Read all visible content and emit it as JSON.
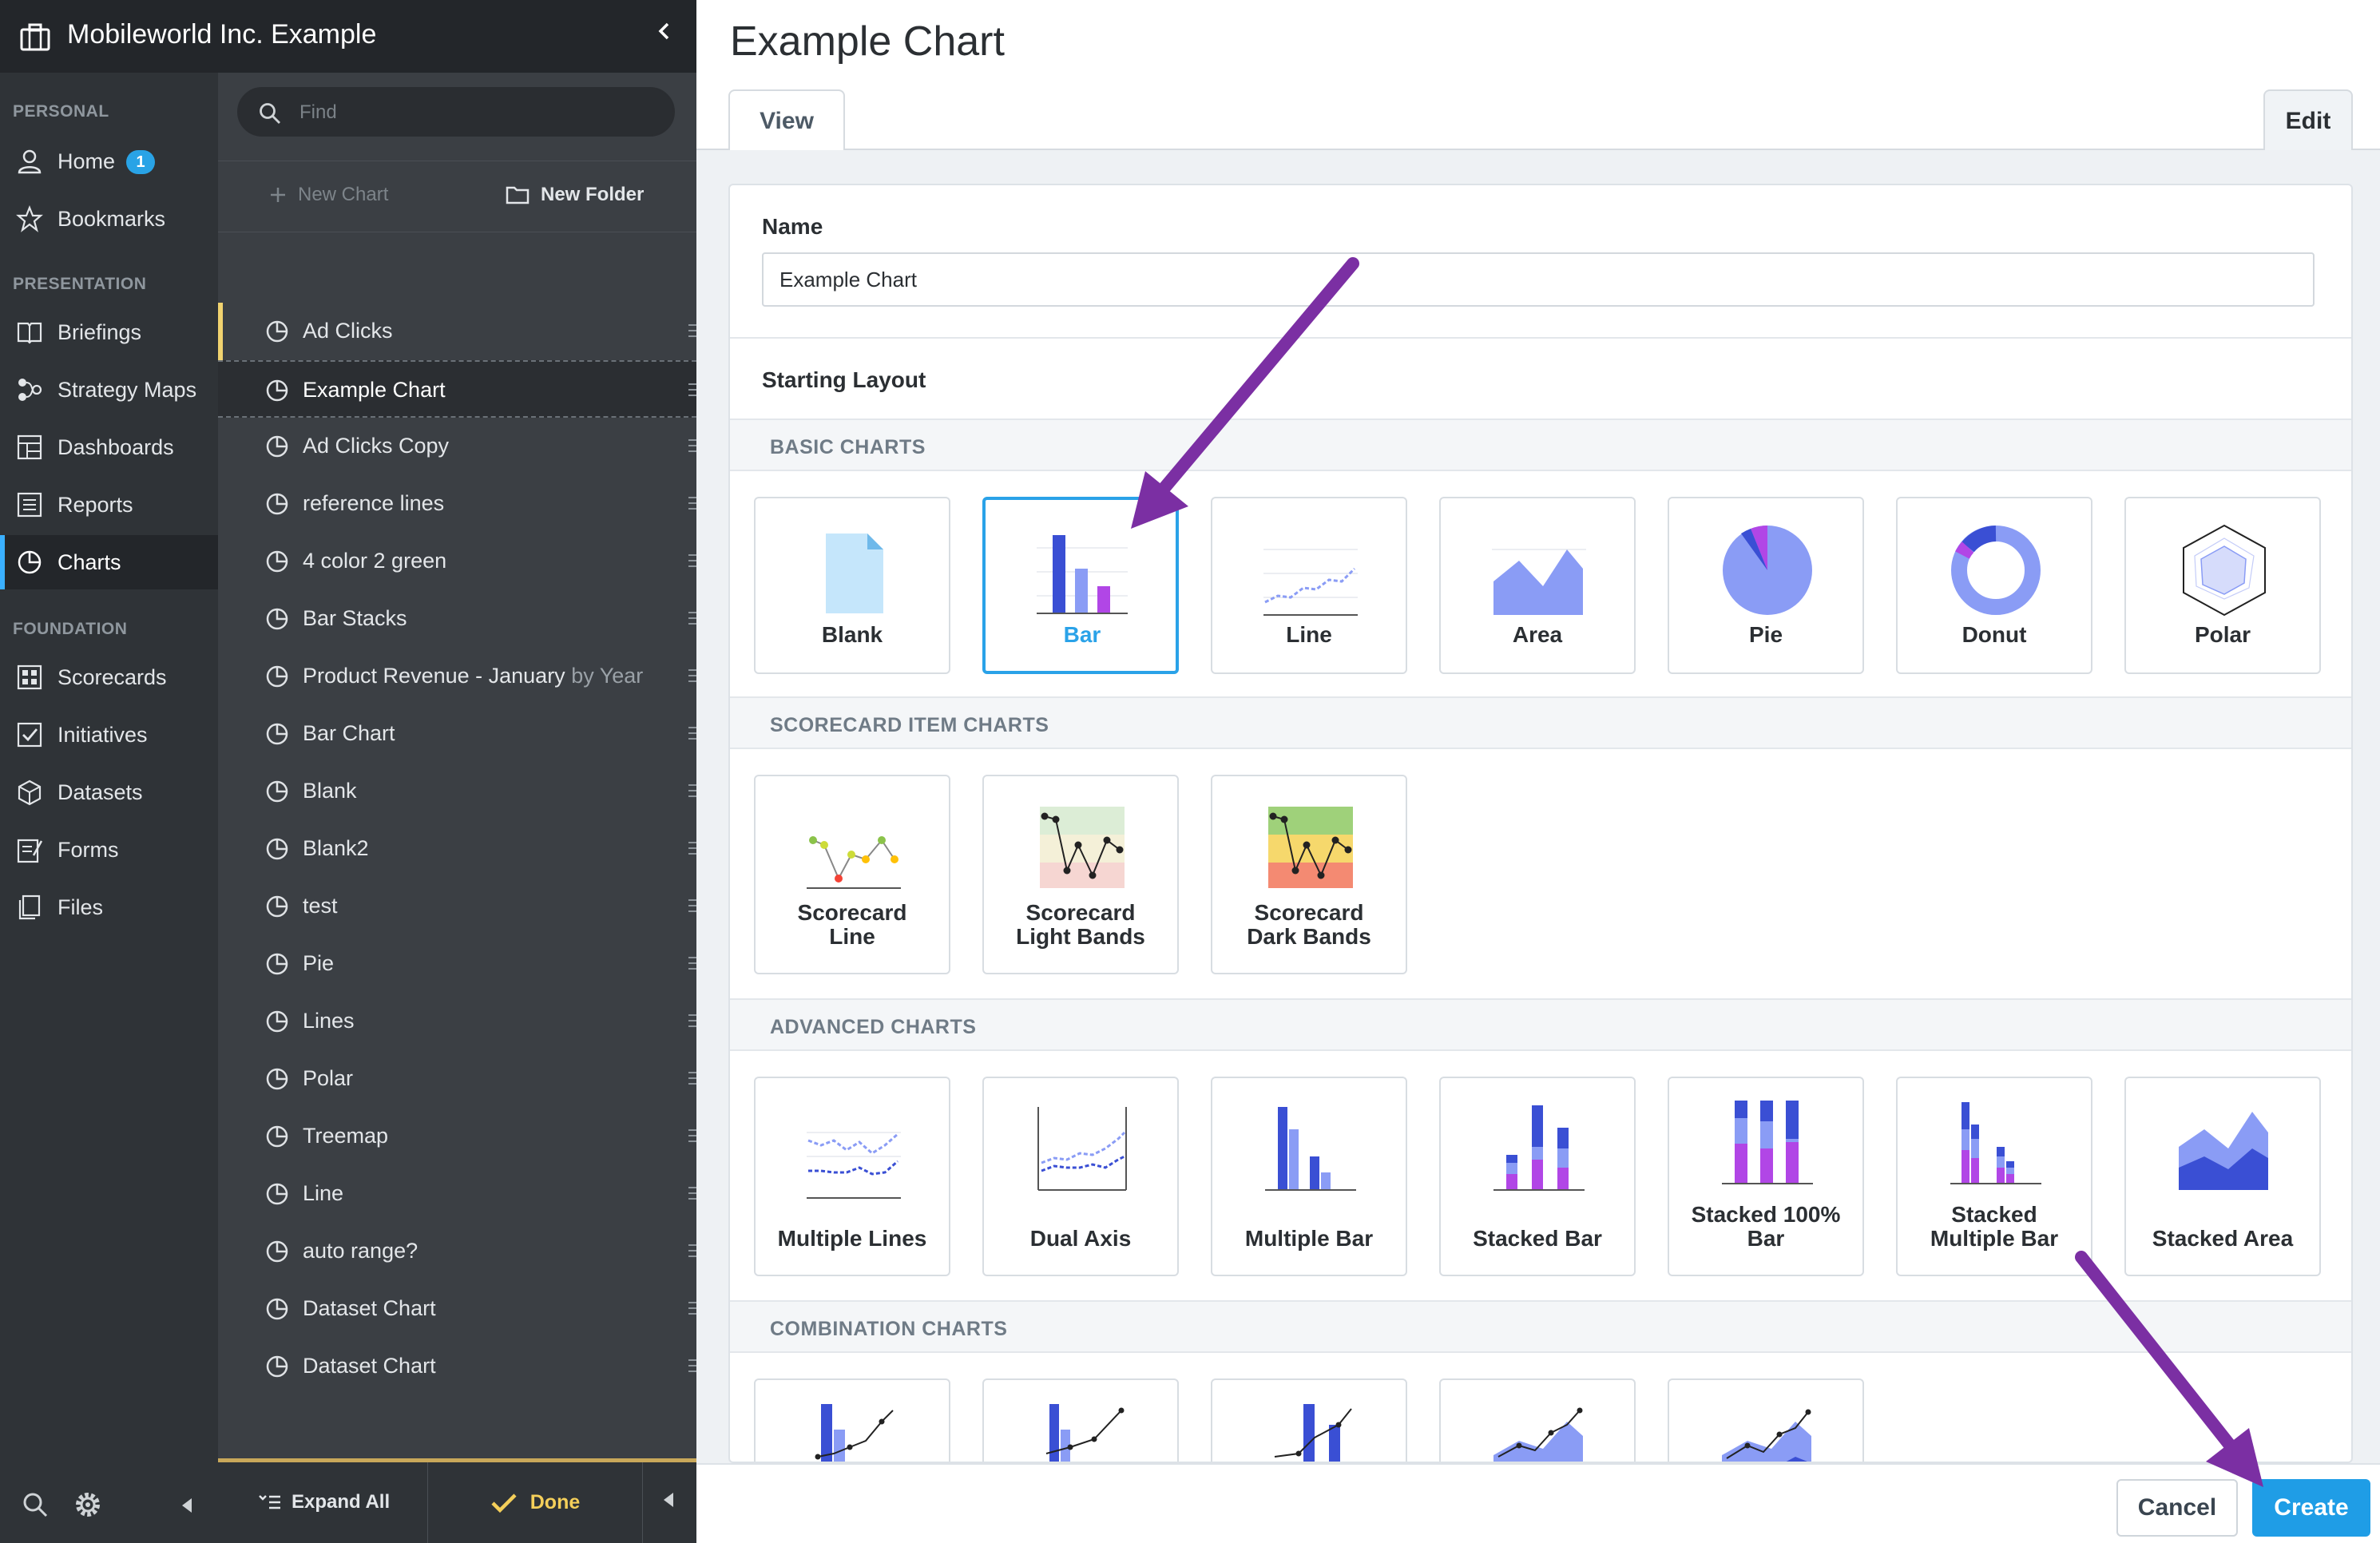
{
  "org": {
    "name": "Mobileworld Inc. Example"
  },
  "nav": {
    "sections": {
      "personal": "PERSONAL",
      "presentation": "PRESENTATION",
      "foundation": "FOUNDATION"
    },
    "items": [
      {
        "label": "Home",
        "icon": "user-icon",
        "badge": "1"
      },
      {
        "label": "Bookmarks",
        "icon": "star-icon"
      },
      {
        "label": "Briefings",
        "icon": "book-icon"
      },
      {
        "label": "Strategy Maps",
        "icon": "strategy-map-icon"
      },
      {
        "label": "Dashboards",
        "icon": "dashboard-icon"
      },
      {
        "label": "Reports",
        "icon": "report-icon"
      },
      {
        "label": "Charts",
        "icon": "pie-chart-icon",
        "active": true
      },
      {
        "label": "Scorecards",
        "icon": "scorecard-icon"
      },
      {
        "label": "Initiatives",
        "icon": "checkbox-icon"
      },
      {
        "label": "Datasets",
        "icon": "cube-icon"
      },
      {
        "label": "Forms",
        "icon": "form-icon"
      },
      {
        "label": "Files",
        "icon": "files-icon"
      }
    ]
  },
  "list": {
    "search": {
      "placeholder": "Find"
    },
    "new_chart": "New Chart",
    "new_folder": "New Folder",
    "items": [
      {
        "label": "Ad Clicks"
      },
      {
        "label": "Example Chart"
      },
      {
        "label": "Ad Clicks Copy"
      },
      {
        "label": "reference lines"
      },
      {
        "label": "4 color 2 green"
      },
      {
        "label": "Bar Stacks"
      },
      {
        "label": "Product Revenue - January",
        "suffix": " by Year"
      },
      {
        "label": "Bar Chart"
      },
      {
        "label": "Blank"
      },
      {
        "label": "Blank2"
      },
      {
        "label": "test"
      },
      {
        "label": "Pie"
      },
      {
        "label": "Lines"
      },
      {
        "label": "Polar"
      },
      {
        "label": "Treemap"
      },
      {
        "label": "Line"
      },
      {
        "label": "auto range?"
      },
      {
        "label": "Dataset Chart"
      },
      {
        "label": "Dataset Chart"
      }
    ],
    "expand_all": "Expand All",
    "done": "Done"
  },
  "main": {
    "title": "Example Chart",
    "tabs": {
      "view": "View",
      "edit": "Edit"
    },
    "name_label": "Name",
    "name_value": "Example Chart",
    "starting_layout_label": "Starting Layout",
    "groups": {
      "basic": "BASIC CHARTS",
      "scorecard": "SCORECARD ITEM CHARTS",
      "advanced": "ADVANCED CHARTS",
      "combination": "COMBINATION CHARTS"
    },
    "basic_charts": [
      "Blank",
      "Bar",
      "Line",
      "Area",
      "Pie",
      "Donut",
      "Polar"
    ],
    "scorecard_charts": [
      {
        "line1": "Scorecard",
        "line2": "Line"
      },
      {
        "line1": "Scorecard",
        "line2": "Light Bands"
      },
      {
        "line1": "Scorecard",
        "line2": "Dark Bands"
      }
    ],
    "advanced_charts": [
      {
        "line1": "Multiple Lines",
        "line2": ""
      },
      {
        "line1": "Dual Axis",
        "line2": ""
      },
      {
        "line1": "Multiple Bar",
        "line2": ""
      },
      {
        "line1": "Stacked Bar",
        "line2": ""
      },
      {
        "line1": "Stacked 100%",
        "line2": "Bar"
      },
      {
        "line1": "Stacked",
        "line2": "Multiple Bar"
      },
      {
        "line1": "Stacked Area",
        "line2": ""
      }
    ],
    "selected_layout": "Bar",
    "cancel": "Cancel",
    "create": "Create"
  },
  "colors": {
    "accent": "#1f9de6",
    "annotation_arrow": "#7b2fa3",
    "chart_primary": "#3a4fd4",
    "chart_secondary": "#8a9cf5",
    "chart_tertiary": "#b146e6",
    "done_gold": "#f4cf5a"
  }
}
